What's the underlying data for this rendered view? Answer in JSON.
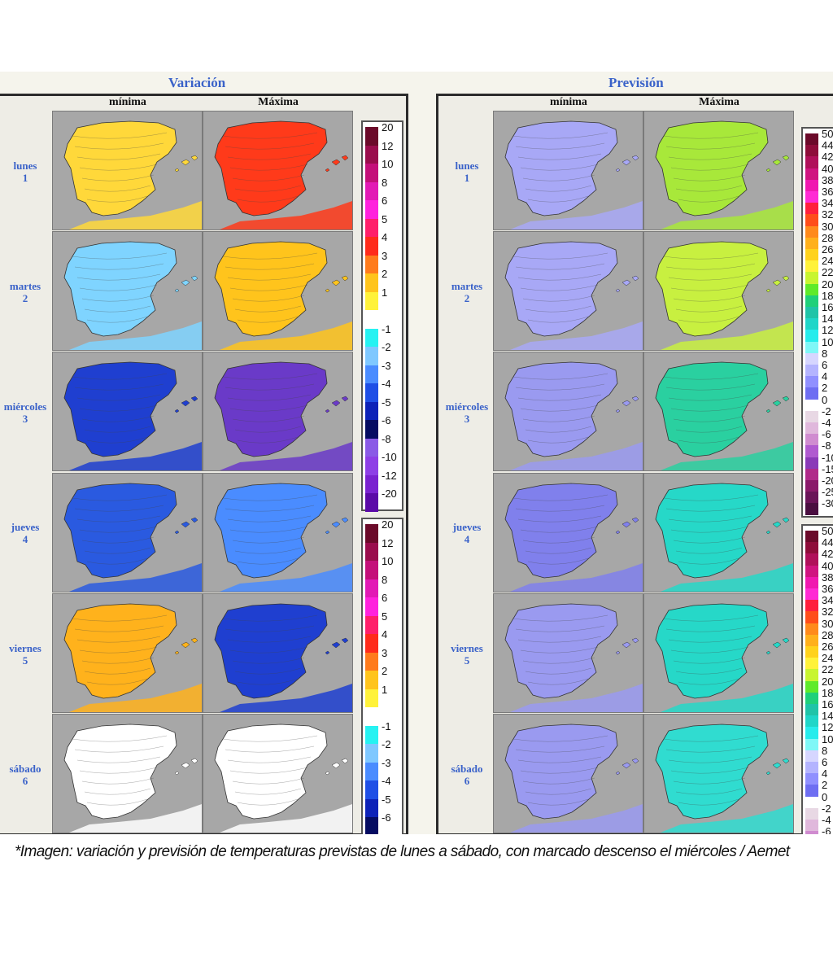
{
  "panels": {
    "variacion": {
      "title": "Variación",
      "col_minima": "mínima",
      "col_maxima": "Máxima"
    },
    "prevision": {
      "title": "Previsión",
      "col_minima": "mínima",
      "col_maxima": "Máxima"
    }
  },
  "days": [
    {
      "name": "lunes",
      "num": "1"
    },
    {
      "name": "martes",
      "num": "2"
    },
    {
      "name": "miércoles",
      "num": "3"
    },
    {
      "name": "jueves",
      "num": "4"
    },
    {
      "name": "viernes",
      "num": "5"
    },
    {
      "name": "sábado",
      "num": "6"
    }
  ],
  "legend_variacion": [
    {
      "label": "20",
      "color": "#6b0a2a"
    },
    {
      "label": "12",
      "color": "#9a0d4d"
    },
    {
      "label": "10",
      "color": "#c4107a"
    },
    {
      "label": "8",
      "color": "#e21ab5"
    },
    {
      "label": "6",
      "color": "#ff22dd"
    },
    {
      "label": "5",
      "color": "#ff1f6a"
    },
    {
      "label": "4",
      "color": "#ff2b1b"
    },
    {
      "label": "3",
      "color": "#ff7b1c"
    },
    {
      "label": "2",
      "color": "#ffc41c"
    },
    {
      "label": "1",
      "color": "#fff23a"
    },
    {
      "label": "",
      "color": "#ffffff"
    },
    {
      "label": "-1",
      "color": "#26f2f2"
    },
    {
      "label": "-2",
      "color": "#7fc8ff"
    },
    {
      "label": "-3",
      "color": "#4a8cff"
    },
    {
      "label": "-4",
      "color": "#1f4fe6"
    },
    {
      "label": "-5",
      "color": "#0d22b8"
    },
    {
      "label": "-6",
      "color": "#050c62"
    },
    {
      "label": "-8",
      "color": "#8a5ae6"
    },
    {
      "label": "-10",
      "color": "#8e3fe6"
    },
    {
      "label": "-12",
      "color": "#7a22d0"
    },
    {
      "label": "-20",
      "color": "#5b0aa8"
    }
  ],
  "legend_prevision": [
    {
      "label": "50",
      "color": "#6b0a2a"
    },
    {
      "label": "44",
      "color": "#8e0d3a"
    },
    {
      "label": "42",
      "color": "#b0105a"
    },
    {
      "label": "40",
      "color": "#d01480"
    },
    {
      "label": "38",
      "color": "#f018b0"
    },
    {
      "label": "36",
      "color": "#ff2ad4"
    },
    {
      "label": "34",
      "color": "#ff1f3c"
    },
    {
      "label": "32",
      "color": "#ff4d1a"
    },
    {
      "label": "30",
      "color": "#ff8a1c"
    },
    {
      "label": "28",
      "color": "#ffb01c"
    },
    {
      "label": "26",
      "color": "#ffd21c"
    },
    {
      "label": "24",
      "color": "#fff23a"
    },
    {
      "label": "22",
      "color": "#c8f530"
    },
    {
      "label": "20",
      "color": "#5fea2a"
    },
    {
      "label": "18",
      "color": "#1fd07a"
    },
    {
      "label": "16",
      "color": "#1fc4a8"
    },
    {
      "label": "14",
      "color": "#1fd6c8"
    },
    {
      "label": "12",
      "color": "#26ecec"
    },
    {
      "label": "10",
      "color": "#7ff7f7"
    },
    {
      "label": "8",
      "color": "#d6d6ff"
    },
    {
      "label": "6",
      "color": "#b4b4ff"
    },
    {
      "label": "4",
      "color": "#9090ff"
    },
    {
      "label": "2",
      "color": "#6e6ef2"
    },
    {
      "label": "0",
      "color": "#ffffff"
    },
    {
      "label": "-2",
      "color": "#e8d8e4"
    },
    {
      "label": "-4",
      "color": "#e0b8dc"
    },
    {
      "label": "-6",
      "color": "#d08cd0"
    },
    {
      "label": "-8",
      "color": "#b05ad0"
    },
    {
      "label": "-10",
      "color": "#8a3ab8"
    },
    {
      "label": "-15",
      "color": "#b02a8a"
    },
    {
      "label": "-20",
      "color": "#8a1a6a"
    },
    {
      "label": "-25",
      "color": "#6a1458"
    },
    {
      "label": "-30",
      "color": "#4a0e40"
    }
  ],
  "map_colors": {
    "sea": "#a7a7a7",
    "var_min": [
      "#ffd83a",
      "#7fd4ff",
      "#1f3fd0",
      "#2a5ae0",
      "#ffb21c",
      "#ffffff"
    ],
    "var_max": [
      "#ff3a1a",
      "#ffc41c",
      "#6a3ac8",
      "#4a8cff",
      "#1f3fd0",
      "#ffffff"
    ],
    "prev_min": [
      "#a8a8f6",
      "#a8a8f6",
      "#9a9af0",
      "#8080ec",
      "#9a9af0",
      "#9a9af0"
    ],
    "prev_max": [
      "#a8e83a",
      "#c8f040",
      "#2ad0a0",
      "#26d8c8",
      "#26d8c8",
      "#30dcd0"
    ]
  },
  "caption": "*Imagen: variación y previsión de temperaturas previstas de lunes a sábado, con marcado descenso el miércoles / Aemet"
}
